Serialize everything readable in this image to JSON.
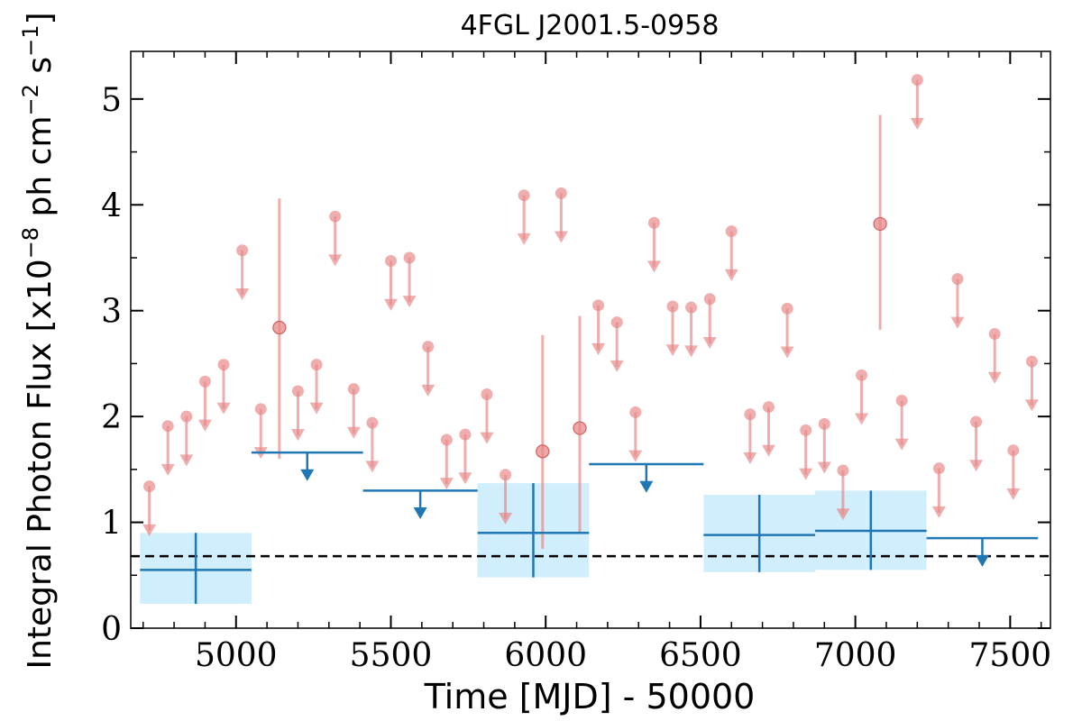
{
  "chart_data": {
    "type": "scatter",
    "title": "4FGL J2001.5-0958",
    "xlabel": "Time [MJD] - 50000",
    "ylabel": "Integral Photon Flux [x10",
    "ylabel_exp1": "−8",
    "ylabel_mid": " ph cm",
    "ylabel_exp2": "−2",
    "ylabel_mid2": " s",
    "ylabel_exp3": "−1",
    "ylabel_end": "]",
    "xlim": [
      4660,
      7630
    ],
    "ylim": [
      0,
      5.45
    ],
    "x_ticks": [
      5000,
      5500,
      6000,
      6500,
      7000,
      7500
    ],
    "y_ticks": [
      0,
      1,
      2,
      3,
      4,
      5
    ],
    "mean_flux": 0.68,
    "fine_bins": {
      "color": "#e88a8a",
      "upper_limits": [
        {
          "x": 4720,
          "y": 1.34
        },
        {
          "x": 4780,
          "y": 1.91
        },
        {
          "x": 4840,
          "y": 2.0
        },
        {
          "x": 4900,
          "y": 2.33
        },
        {
          "x": 4960,
          "y": 2.49
        },
        {
          "x": 5020,
          "y": 3.57
        },
        {
          "x": 5080,
          "y": 2.07
        },
        {
          "x": 5200,
          "y": 2.24
        },
        {
          "x": 5260,
          "y": 2.49
        },
        {
          "x": 5320,
          "y": 3.89
        },
        {
          "x": 5380,
          "y": 2.26
        },
        {
          "x": 5440,
          "y": 1.94
        },
        {
          "x": 5500,
          "y": 3.47
        },
        {
          "x": 5560,
          "y": 3.5
        },
        {
          "x": 5620,
          "y": 2.66
        },
        {
          "x": 5680,
          "y": 1.78
        },
        {
          "x": 5740,
          "y": 1.83
        },
        {
          "x": 5810,
          "y": 2.21
        },
        {
          "x": 5870,
          "y": 1.45
        },
        {
          "x": 5930,
          "y": 4.09
        },
        {
          "x": 6050,
          "y": 4.11
        },
        {
          "x": 6170,
          "y": 3.05
        },
        {
          "x": 6230,
          "y": 2.89
        },
        {
          "x": 6290,
          "y": 2.04
        },
        {
          "x": 6350,
          "y": 3.83
        },
        {
          "x": 6410,
          "y": 3.04
        },
        {
          "x": 6470,
          "y": 3.03
        },
        {
          "x": 6530,
          "y": 3.11
        },
        {
          "x": 6600,
          "y": 3.75
        },
        {
          "x": 6660,
          "y": 2.02
        },
        {
          "x": 6720,
          "y": 2.09
        },
        {
          "x": 6780,
          "y": 3.02
        },
        {
          "x": 6840,
          "y": 1.87
        },
        {
          "x": 6900,
          "y": 1.93
        },
        {
          "x": 6960,
          "y": 1.49
        },
        {
          "x": 7020,
          "y": 2.39
        },
        {
          "x": 7200,
          "y": 5.18
        },
        {
          "x": 7150,
          "y": 2.15
        },
        {
          "x": 7270,
          "y": 1.51
        },
        {
          "x": 7330,
          "y": 3.3
        },
        {
          "x": 7390,
          "y": 1.95
        },
        {
          "x": 7450,
          "y": 2.78
        },
        {
          "x": 7510,
          "y": 1.68
        },
        {
          "x": 7570,
          "y": 2.52
        }
      ],
      "detections": [
        {
          "x": 5140,
          "y": 2.84,
          "ylo": 1.6,
          "yhi": 4.06
        },
        {
          "x": 5990,
          "y": 1.67,
          "ylo": 0.75,
          "yhi": 2.77
        },
        {
          "x": 6110,
          "y": 1.89,
          "ylo": 0.9,
          "yhi": 2.95
        },
        {
          "x": 7080,
          "y": 3.82,
          "ylo": 2.82,
          "yhi": 4.85
        }
      ]
    },
    "coarse_bins": {
      "color": "#1f77b4",
      "band_color": "#d0eefc",
      "detections": [
        {
          "x0": 4690,
          "x1": 5050,
          "xc": 4870,
          "y": 0.55,
          "ylo": 0.23,
          "yhi": 0.9
        },
        {
          "x0": 5780,
          "x1": 6140,
          "xc": 5960,
          "y": 0.9,
          "ylo": 0.48,
          "yhi": 1.37
        },
        {
          "x0": 6510,
          "x1": 6870,
          "xc": 6690,
          "y": 0.88,
          "ylo": 0.53,
          "yhi": 1.26
        },
        {
          "x0": 6870,
          "x1": 7230,
          "xc": 7050,
          "y": 0.92,
          "ylo": 0.55,
          "yhi": 1.3
        }
      ],
      "upper_limits": [
        {
          "x0": 5050,
          "x1": 5410,
          "xc": 5230,
          "y": 1.66
        },
        {
          "x0": 5410,
          "x1": 5780,
          "xc": 5595,
          "y": 1.3
        },
        {
          "x0": 6140,
          "x1": 6510,
          "xc": 6325,
          "y": 1.55
        },
        {
          "x0": 7230,
          "x1": 7590,
          "xc": 7410,
          "y": 0.85
        }
      ]
    }
  }
}
